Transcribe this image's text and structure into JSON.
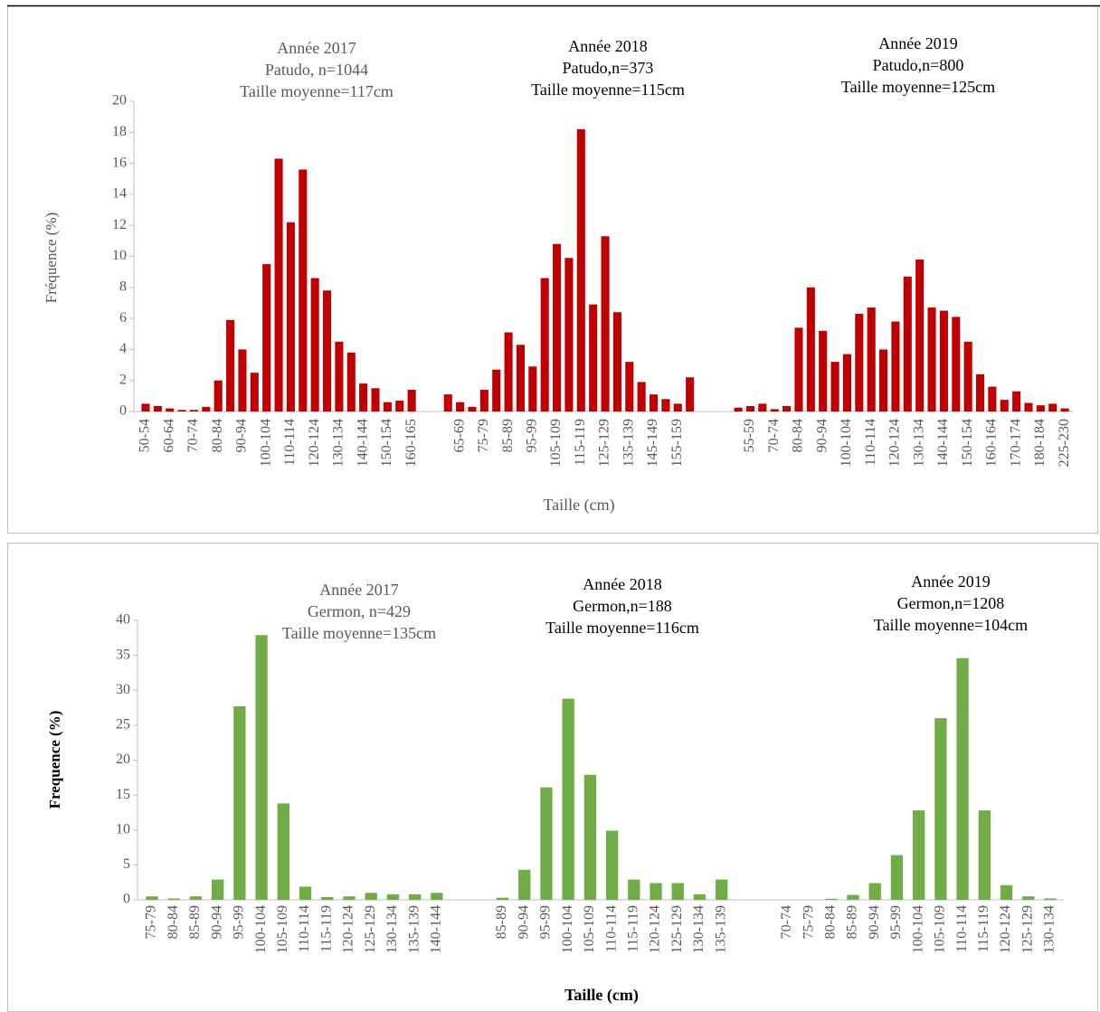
{
  "chart_data": [
    {
      "type": "bar",
      "color": "#c00000",
      "ylabel": "Fréquence (%)",
      "xlabel": "Taille (cm)",
      "ylim": [
        0,
        20
      ],
      "yticks": [
        0,
        2,
        4,
        6,
        8,
        10,
        12,
        14,
        16,
        18,
        20
      ],
      "annotations": [
        [
          "Année 2017",
          "Patudo, n=1044",
          "Taille moyenne=117cm"
        ],
        [
          "Année 2018",
          "Patudo,n=373",
          "Taille moyenne=115cm"
        ],
        [
          "Année 2019",
          "Patudo,n=800",
          "Taille moyenne=125cm"
        ]
      ],
      "categories": [
        "50-54",
        null,
        "60-64",
        null,
        "70-74",
        null,
        "80-84",
        null,
        "90-94",
        null,
        "100-104",
        null,
        "110-114",
        null,
        "120-124",
        null,
        "130-134",
        null,
        "140-144",
        null,
        "150-154",
        null,
        "160-165",
        null,
        null,
        null,
        "65-69",
        null,
        "75-79",
        null,
        "85-89",
        null,
        "95-99",
        null,
        "105-109",
        null,
        "115-119",
        null,
        "125-129",
        null,
        "135-139",
        null,
        "145-149",
        null,
        "155-159",
        null,
        null,
        null,
        null,
        null,
        "55-59",
        null,
        "70-74",
        null,
        "80-84",
        null,
        "90-94",
        null,
        "100-104",
        null,
        "110-114",
        null,
        "120-124",
        null,
        "130-134",
        null,
        "140-144",
        null,
        "150-154",
        null,
        "160-164",
        null,
        "170-174",
        null,
        "180-184",
        null,
        "225-230"
      ],
      "values": [
        0.5,
        0.35,
        0.2,
        0.1,
        0.1,
        0.3,
        2.0,
        5.9,
        4.0,
        2.5,
        9.5,
        16.3,
        12.2,
        15.6,
        8.6,
        7.8,
        4.5,
        3.8,
        1.8,
        1.5,
        0.6,
        0.7,
        1.4,
        null,
        null,
        1.1,
        0.6,
        0.3,
        1.4,
        2.7,
        5.1,
        4.3,
        2.9,
        8.6,
        10.8,
        9.9,
        18.2,
        6.9,
        11.3,
        6.4,
        3.2,
        1.9,
        1.1,
        0.8,
        0.5,
        2.2,
        null,
        null,
        null,
        0.25,
        0.35,
        0.5,
        0.15,
        0.35,
        5.4,
        8.0,
        5.2,
        3.2,
        3.7,
        6.3,
        6.7,
        4.0,
        5.8,
        8.7,
        9.8,
        6.7,
        6.5,
        6.1,
        4.5,
        2.4,
        1.6,
        0.75,
        1.3,
        0.55,
        0.4,
        0.5,
        0.2
      ]
    },
    {
      "type": "bar",
      "color": "#70ad47",
      "ylabel": "Frequence (%)",
      "xlabel": "Taille (cm)",
      "ylim": [
        0,
        40
      ],
      "yticks": [
        0,
        5,
        10,
        15,
        20,
        25,
        30,
        35,
        40
      ],
      "annotations": [
        [
          "Année 2017",
          "Germon, n=429",
          "Taille moyenne=135cm"
        ],
        [
          "Année 2018",
          "Germon,n=188",
          "Taille moyenne=116cm"
        ],
        [
          "Année 2019",
          "Germon,n=1208",
          "Taille moyenne=104cm"
        ]
      ],
      "categories": [
        "75-79",
        "80-84",
        "85-89",
        "90-94",
        "95-99",
        "100-104",
        "105-109",
        "110-114",
        "115-119",
        "120-124",
        "125-129",
        "130-134",
        "135-139",
        "140-144",
        null,
        null,
        "85-89",
        "90-94",
        "95-99",
        "100-104",
        "105-109",
        "110-114",
        "115-119",
        "120-124",
        "125-129",
        "130-134",
        "135-139",
        null,
        null,
        "70-74",
        "75-79",
        "80-84",
        "85-89",
        "90-94",
        "95-99",
        "100-104",
        "105-109",
        "110-114",
        "115-119",
        "120-124",
        "125-129",
        "130-134"
      ],
      "values": [
        0.5,
        0.2,
        0.5,
        2.9,
        27.7,
        37.9,
        13.8,
        1.9,
        0.4,
        0.5,
        1.0,
        0.8,
        0.8,
        1.0,
        null,
        null,
        0.3,
        4.3,
        16.1,
        28.8,
        17.9,
        9.9,
        2.9,
        2.4,
        2.4,
        0.8,
        2.9,
        null,
        null,
        0,
        0,
        0.15,
        0.7,
        2.4,
        6.4,
        12.8,
        26.0,
        34.6,
        12.8,
        2.1,
        0.5,
        0.2
      ]
    }
  ]
}
